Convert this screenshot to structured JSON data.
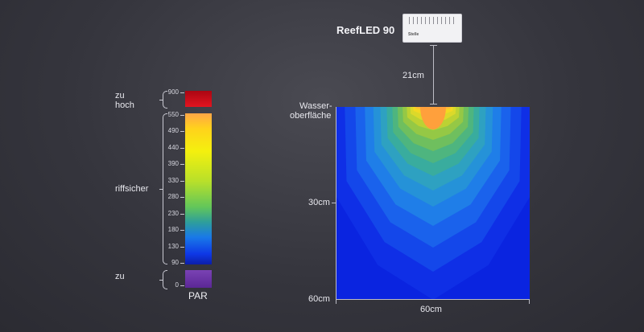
{
  "device": {
    "name": "ReefLED 90",
    "logo_text": "Stelle"
  },
  "measurements": {
    "distance_above_water": "21cm",
    "water_surface": [
      "Wasser-",
      "oberfläche"
    ],
    "depth_mid": "30cm",
    "depth_bottom": "60cm",
    "tank_width": "60cm"
  },
  "legend": {
    "unit": "PAR",
    "high_label": [
      "zu",
      "hoch"
    ],
    "safe_label": "riffsicher",
    "low_label": "zu",
    "ticks_high": [
      "900"
    ],
    "ticks_safe": [
      "550",
      "490",
      "440",
      "390",
      "330",
      "280",
      "230",
      "180",
      "130",
      "90"
    ],
    "ticks_low": [
      "0"
    ]
  },
  "colors": {
    "too_high": "#d10f1b",
    "too_low": "#6b35a3",
    "scale": [
      "#ffa646",
      "#ffd21c",
      "#f4f00e",
      "#b8e02a",
      "#62c65a",
      "#2e9e9b",
      "#1979e8",
      "#0e38e6",
      "#0c1ea8"
    ],
    "background": "#35353d"
  }
}
